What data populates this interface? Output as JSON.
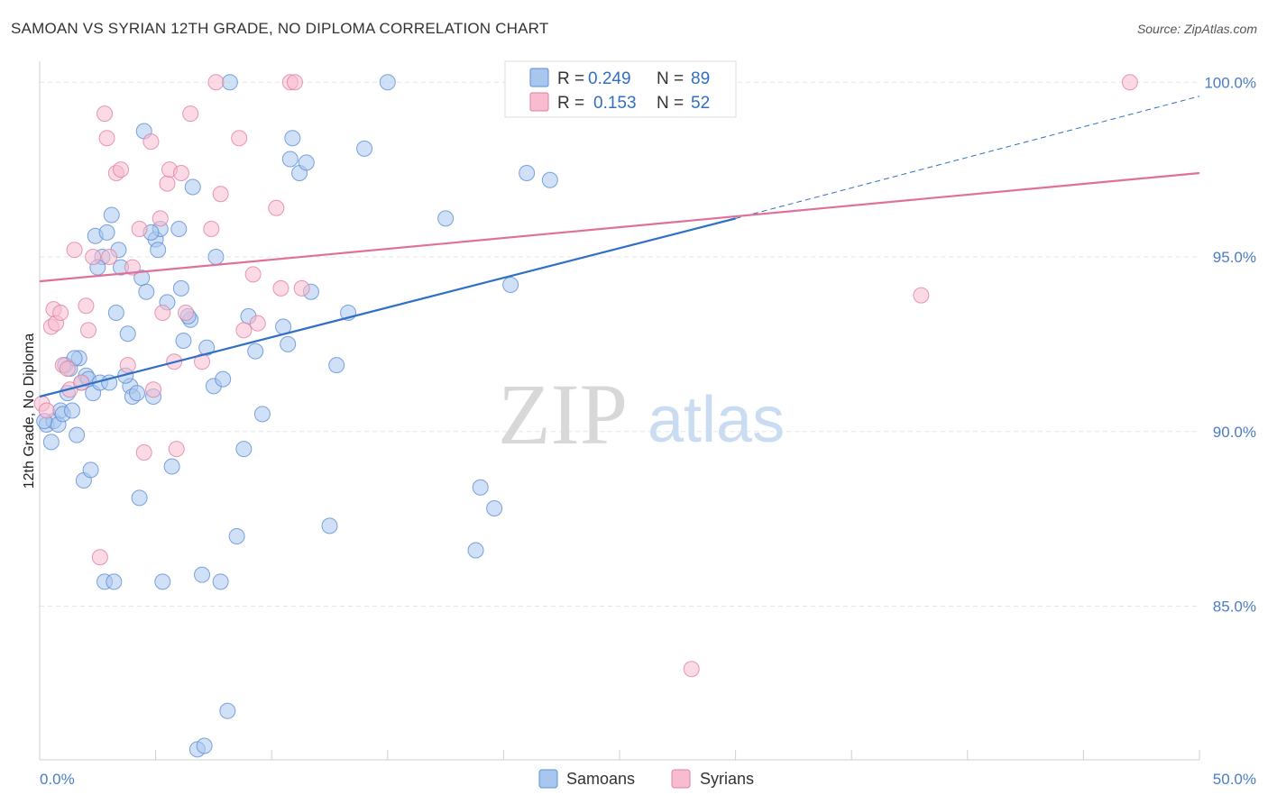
{
  "title": "SAMOAN VS SYRIAN 12TH GRADE, NO DIPLOMA CORRELATION CHART",
  "source": "Source: ZipAtlas.com",
  "watermark": {
    "zip": "ZIP",
    "atlas": "atlas"
  },
  "legend": {
    "r_label": "R =",
    "n_label": "N =",
    "rows": [
      {
        "r": "0.249",
        "n": "89",
        "color": "#a9c6ee",
        "stroke": "#5b8fd6"
      },
      {
        "r": "0.153",
        "n": "52",
        "color": "#f7bcd0",
        "stroke": "#e07fa2"
      }
    ]
  },
  "bottom_legend": [
    {
      "label": "Samoans",
      "color": "#a9c6ee",
      "stroke": "#5b8fd6"
    },
    {
      "label": "Syrians",
      "color": "#f7bcd0",
      "stroke": "#e07fa2"
    }
  ],
  "chart_data": {
    "type": "scatter",
    "title": "SAMOAN VS SYRIAN 12TH GRADE, NO DIPLOMA CORRELATION CHART",
    "xlabel": "",
    "ylabel": "12th Grade, No Diploma",
    "xlim": [
      0,
      50
    ],
    "ylim": [
      80.6,
      100.6
    ],
    "x_tick_labels": [
      {
        "value": 0,
        "label": "0.0%"
      },
      {
        "value": 50,
        "label": "50.0%"
      }
    ],
    "y_tick_labels": [
      {
        "value": 100,
        "label": "100.0%"
      },
      {
        "value": 95,
        "label": "95.0%"
      },
      {
        "value": 90,
        "label": "90.0%"
      },
      {
        "value": 85,
        "label": "85.0%"
      }
    ],
    "grid": true,
    "series": [
      {
        "name": "Samoans",
        "color": "#5b8fd6",
        "fill": "#a9c6ee",
        "points": [
          [
            0.3,
            90.2
          ],
          [
            0.5,
            89.7
          ],
          [
            0.6,
            90.3
          ],
          [
            0.8,
            90.2
          ],
          [
            0.9,
            90.6
          ],
          [
            1.0,
            90.5
          ],
          [
            1.1,
            91.9
          ],
          [
            1.2,
            91.1
          ],
          [
            1.3,
            91.8
          ],
          [
            1.4,
            90.6
          ],
          [
            1.6,
            89.9
          ],
          [
            1.7,
            92.1
          ],
          [
            1.8,
            91.4
          ],
          [
            1.9,
            88.6
          ],
          [
            2.0,
            91.6
          ],
          [
            2.1,
            91.5
          ],
          [
            2.2,
            88.9
          ],
          [
            2.3,
            91.1
          ],
          [
            2.4,
            95.6
          ],
          [
            2.6,
            91.4
          ],
          [
            2.7,
            95.0
          ],
          [
            2.8,
            85.7
          ],
          [
            2.9,
            95.7
          ],
          [
            3.0,
            91.4
          ],
          [
            3.1,
            96.2
          ],
          [
            3.2,
            85.7
          ],
          [
            3.3,
            93.4
          ],
          [
            3.4,
            95.2
          ],
          [
            3.5,
            94.7
          ],
          [
            3.8,
            92.8
          ],
          [
            3.9,
            91.3
          ],
          [
            4.0,
            91.0
          ],
          [
            4.2,
            91.1
          ],
          [
            4.3,
            88.1
          ],
          [
            4.4,
            94.4
          ],
          [
            4.5,
            98.6
          ],
          [
            4.6,
            94.0
          ],
          [
            4.9,
            91.0
          ],
          [
            5.0,
            95.5
          ],
          [
            5.1,
            95.2
          ],
          [
            5.2,
            95.8
          ],
          [
            5.3,
            85.7
          ],
          [
            5.5,
            93.7
          ],
          [
            5.7,
            89.0
          ],
          [
            6.0,
            95.8
          ],
          [
            6.1,
            94.1
          ],
          [
            6.2,
            92.6
          ],
          [
            6.5,
            93.2
          ],
          [
            6.6,
            97.0
          ],
          [
            6.8,
            80.9
          ],
          [
            7.0,
            85.9
          ],
          [
            7.1,
            81.0
          ],
          [
            7.2,
            92.4
          ],
          [
            7.5,
            91.3
          ],
          [
            7.6,
            95.0
          ],
          [
            7.8,
            85.7
          ],
          [
            7.9,
            91.5
          ],
          [
            8.1,
            82.0
          ],
          [
            8.2,
            100.0
          ],
          [
            8.5,
            87.0
          ],
          [
            8.8,
            89.5
          ],
          [
            9.0,
            93.3
          ],
          [
            9.3,
            92.3
          ],
          [
            9.6,
            90.5
          ],
          [
            10.5,
            93.0
          ],
          [
            10.7,
            92.5
          ],
          [
            10.8,
            97.8
          ],
          [
            10.9,
            98.4
          ],
          [
            11.2,
            97.4
          ],
          [
            11.5,
            97.7
          ],
          [
            11.7,
            94.0
          ],
          [
            12.5,
            87.3
          ],
          [
            12.8,
            91.9
          ],
          [
            13.3,
            93.4
          ],
          [
            14.0,
            98.1
          ],
          [
            15.0,
            100.0
          ],
          [
            17.5,
            96.1
          ],
          [
            18.8,
            86.6
          ],
          [
            19.0,
            88.4
          ],
          [
            19.6,
            87.8
          ],
          [
            20.3,
            94.2
          ],
          [
            21.0,
            97.4
          ],
          [
            22.0,
            97.2
          ],
          [
            1.5,
            92.1
          ],
          [
            2.5,
            94.7
          ],
          [
            6.4,
            93.3
          ],
          [
            4.8,
            95.7
          ],
          [
            0.2,
            90.3
          ],
          [
            3.7,
            91.6
          ]
        ]
      },
      {
        "name": "Syrians",
        "color": "#e07fa2",
        "fill": "#f7bcd0",
        "points": [
          [
            0.1,
            90.8
          ],
          [
            0.3,
            90.6
          ],
          [
            0.5,
            93.0
          ],
          [
            0.6,
            93.5
          ],
          [
            0.7,
            93.1
          ],
          [
            0.9,
            93.4
          ],
          [
            1.0,
            91.9
          ],
          [
            1.2,
            91.8
          ],
          [
            1.3,
            91.2
          ],
          [
            1.5,
            95.2
          ],
          [
            1.8,
            91.4
          ],
          [
            2.0,
            93.6
          ],
          [
            2.1,
            92.9
          ],
          [
            2.3,
            95.0
          ],
          [
            2.6,
            86.4
          ],
          [
            2.8,
            99.1
          ],
          [
            2.9,
            98.4
          ],
          [
            3.0,
            95.0
          ],
          [
            3.3,
            97.4
          ],
          [
            3.5,
            97.5
          ],
          [
            3.8,
            91.9
          ],
          [
            4.0,
            94.7
          ],
          [
            4.3,
            95.8
          ],
          [
            4.5,
            89.4
          ],
          [
            4.8,
            98.3
          ],
          [
            4.9,
            91.2
          ],
          [
            5.2,
            96.1
          ],
          [
            5.3,
            93.4
          ],
          [
            5.5,
            97.1
          ],
          [
            5.6,
            97.5
          ],
          [
            5.9,
            89.5
          ],
          [
            6.1,
            97.4
          ],
          [
            6.3,
            93.4
          ],
          [
            6.5,
            99.1
          ],
          [
            7.0,
            92.0
          ],
          [
            7.4,
            95.8
          ],
          [
            7.6,
            100.0
          ],
          [
            7.8,
            96.8
          ],
          [
            8.6,
            98.4
          ],
          [
            8.8,
            92.9
          ],
          [
            9.2,
            94.5
          ],
          [
            9.4,
            93.1
          ],
          [
            10.2,
            96.4
          ],
          [
            10.4,
            94.1
          ],
          [
            10.8,
            100.0
          ],
          [
            11.0,
            100.0
          ],
          [
            11.3,
            94.1
          ],
          [
            26.8,
            100.0
          ],
          [
            28.1,
            83.2
          ],
          [
            38.0,
            93.9
          ],
          [
            47.0,
            100.0
          ],
          [
            5.8,
            92.0
          ]
        ]
      }
    ],
    "trendlines": [
      {
        "series": "Samoans",
        "color": "#2f6fc6",
        "solid_from": [
          0,
          91.0
        ],
        "solid_to": [
          30,
          96.1
        ],
        "dashed_to": [
          50,
          99.6
        ]
      },
      {
        "series": "Syrians",
        "color": "#e0709a",
        "from": [
          0,
          94.3
        ],
        "to": [
          50,
          97.4
        ]
      }
    ]
  }
}
